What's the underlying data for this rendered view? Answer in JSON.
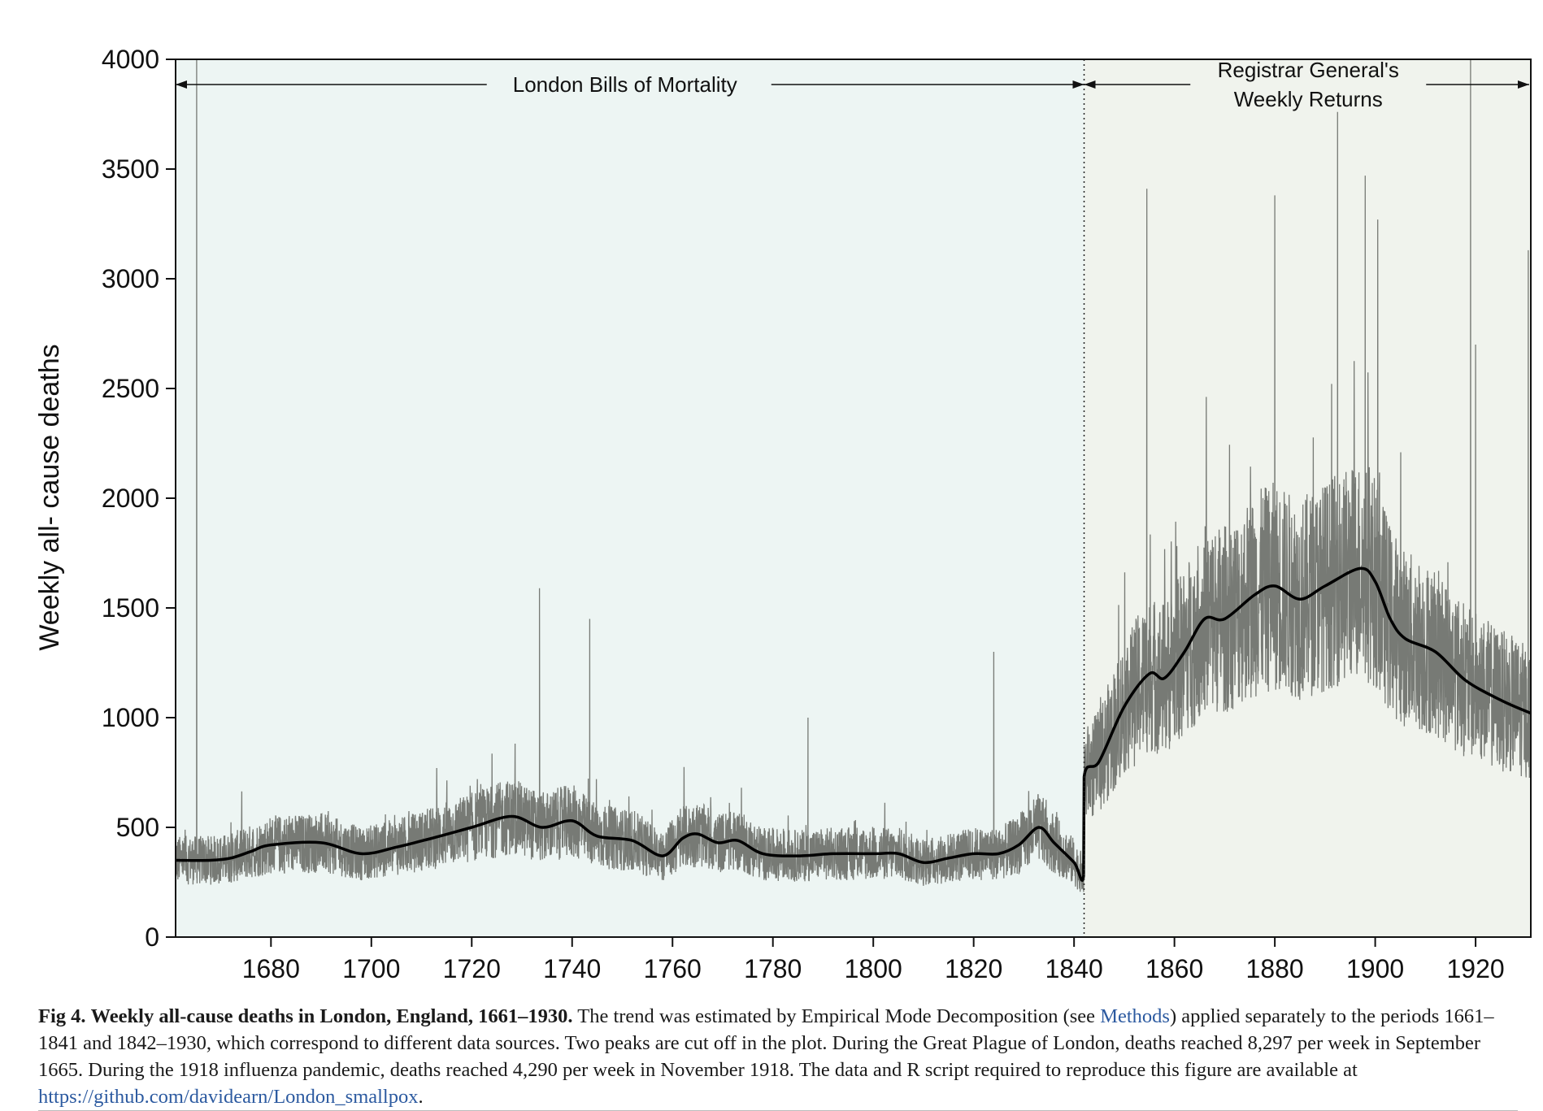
{
  "chart_data": {
    "type": "line",
    "ylabel": "Weekly all- cause deaths",
    "xlabel": "",
    "xlim": [
      1661,
      1931
    ],
    "ylim": [
      0,
      4000
    ],
    "xticks": [
      1680,
      1700,
      1720,
      1740,
      1760,
      1780,
      1800,
      1820,
      1840,
      1860,
      1880,
      1900,
      1920
    ],
    "yticks": [
      0,
      500,
      1000,
      1500,
      2000,
      2500,
      3000,
      3500,
      4000
    ],
    "grid": false,
    "regions": [
      {
        "label": "London Bills of Mortality",
        "x0": 1661,
        "x1": 1842,
        "color": "#edf5f3"
      },
      {
        "label_line1": "Registrar General's",
        "label_line2": "Weekly Returns",
        "x0": 1842,
        "x1": 1931,
        "color": "#f0f3ed"
      }
    ],
    "divider_x": 1842,
    "series": [
      {
        "role": "weekly",
        "color": "#777a75",
        "x": [
          1661,
          1664,
          1665.2,
          1665.7,
          1666.5,
          1670,
          1680,
          1690,
          1700,
          1710,
          1720,
          1728,
          1733.5,
          1734,
          1740,
          1743.5,
          1744,
          1750,
          1760,
          1765,
          1770,
          1780,
          1787,
          1790,
          1800,
          1810,
          1820,
          1824,
          1827,
          1830,
          1835,
          1841.9,
          1842,
          1845,
          1850,
          1854.5,
          1855,
          1860,
          1866,
          1870,
          1875,
          1879.5,
          1880,
          1885,
          1892,
          1892.5,
          1895,
          1897.5,
          1898,
          1900,
          1900.5,
          1905,
          1910,
          1915,
          1918.8,
          1919,
          1919.5,
          1920,
          1925,
          1930,
          1930.5,
          1931
        ],
        "y": [
          330,
          300,
          4000,
          300,
          320,
          360,
          430,
          440,
          390,
          420,
          500,
          540,
          1590,
          520,
          530,
          1450,
          500,
          450,
          380,
          460,
          430,
          380,
          1000,
          380,
          380,
          350,
          380,
          1300,
          450,
          600,
          450,
          200,
          800,
          950,
          1150,
          3410,
          1180,
          1250,
          1450,
          1450,
          1550,
          1600,
          3380,
          1550,
          1650,
          3760,
          1700,
          1700,
          3470,
          1650,
          3270,
          1350,
          1300,
          1150,
          1100,
          4000,
          1100,
          2700,
          1050,
          1000,
          3130,
          1000
        ]
      },
      {
        "role": "trend",
        "color": "#000000",
        "x": [
          1661,
          1668,
          1672,
          1676,
          1680,
          1690,
          1698,
          1705,
          1712,
          1720,
          1728,
          1734,
          1740,
          1745,
          1752,
          1758,
          1762,
          1765,
          1769,
          1773,
          1778,
          1785,
          1792,
          1800,
          1805,
          1810,
          1815,
          1820,
          1825,
          1829,
          1833,
          1836,
          1840,
          1841.9,
          1842,
          1845,
          1850,
          1855,
          1858,
          1862,
          1866,
          1870,
          1876,
          1880,
          1885,
          1890,
          1897,
          1900,
          1903,
          1906,
          1912,
          1918,
          1925,
          1931
        ],
        "y": [
          350,
          350,
          360,
          390,
          420,
          430,
          380,
          410,
          450,
          500,
          550,
          500,
          530,
          460,
          440,
          370,
          450,
          470,
          430,
          440,
          380,
          370,
          380,
          380,
          380,
          340,
          360,
          380,
          380,
          420,
          500,
          430,
          340,
          280,
          730,
          800,
          1050,
          1200,
          1180,
          1300,
          1450,
          1450,
          1560,
          1600,
          1540,
          1600,
          1680,
          1620,
          1450,
          1360,
          1300,
          1170,
          1080,
          1020
        ]
      }
    ]
  },
  "caption": {
    "fig_label": "Fig 4.",
    "title": "Weekly all-cause deaths in London, England, 1661–1930.",
    "text1": "The trend was estimated by Empirical Mode Decomposition (see",
    "link1": "Methods",
    "text2": ") applied separately to the periods 1661–1841 and 1842–1930, which correspond to different data sources. Two peaks are cut off in the plot. During the Great Plague of London, deaths reached 8,297 per week in September 1665. During the 1918 influenza pandemic, deaths reached 4,290 per week in November 1918. The data and R script required to reproduce this figure are available at",
    "link2": "https://github.com/davidearn/London_smallpox",
    "text3": "."
  }
}
